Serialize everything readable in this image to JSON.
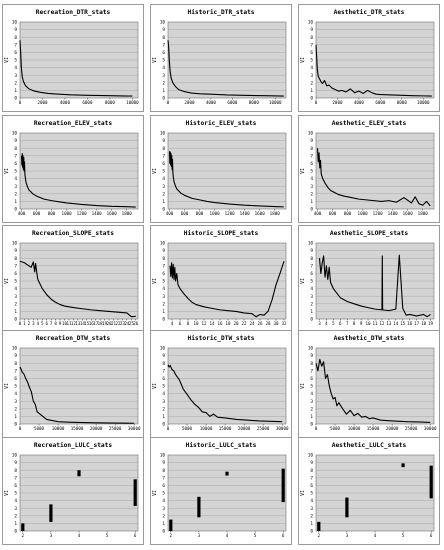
{
  "page": {
    "background": "#ffffff",
    "plot_background": "#d4d4d4",
    "line_color": "#000000",
    "frame_color": "#9a9a9a"
  },
  "chart_data": [
    {
      "type": "line",
      "title": "Recreation_DTR_stats",
      "ylabel": "VI",
      "xlim": [
        0,
        10500
      ],
      "ylim": [
        0,
        10
      ],
      "xticks": [
        0,
        2000,
        4000,
        6000,
        8000,
        10000
      ],
      "yticks": [
        0,
        1,
        2,
        3,
        4,
        5,
        6,
        7,
        8,
        9,
        10
      ],
      "series": [
        {
          "x": [
            0,
            60,
            120,
            200,
            300,
            500,
            800,
            1200,
            1800,
            2500,
            3500,
            4500,
            6000,
            8000,
            10000
          ],
          "y": [
            7.6,
            6.0,
            4.0,
            2.8,
            2.2,
            1.6,
            1.2,
            0.95,
            0.75,
            0.6,
            0.5,
            0.42,
            0.35,
            0.3,
            0.25
          ]
        }
      ]
    },
    {
      "type": "line",
      "title": "Historic_DTR_stats",
      "ylabel": "VI",
      "xlim": [
        0,
        11000
      ],
      "ylim": [
        0,
        10
      ],
      "xticks": [
        0,
        2000,
        4000,
        6000,
        8000,
        10000
      ],
      "yticks": [
        0,
        1,
        2,
        3,
        4,
        5,
        6,
        7,
        8,
        9,
        10
      ],
      "series": [
        {
          "x": [
            0,
            60,
            120,
            200,
            300,
            450,
            700,
            1000,
            1500,
            2200,
            3000,
            4000,
            5500,
            7000,
            9000,
            10800
          ],
          "y": [
            7.6,
            6.8,
            5.0,
            3.5,
            2.6,
            2.0,
            1.5,
            1.1,
            0.85,
            0.65,
            0.55,
            0.5,
            0.4,
            0.35,
            0.3,
            0.25
          ]
        }
      ]
    },
    {
      "type": "line",
      "title": "Aesthetic_DTR_stats",
      "ylabel": "VI",
      "xlim": [
        0,
        11000
      ],
      "ylim": [
        0,
        10
      ],
      "xticks": [
        0,
        2000,
        4000,
        6000,
        8000,
        10000
      ],
      "yticks": [
        0,
        1,
        2,
        3,
        4,
        5,
        6,
        7,
        8,
        9,
        10
      ],
      "series": [
        {
          "x": [
            0,
            60,
            120,
            200,
            300,
            450,
            600,
            800,
            1000,
            1200,
            1500,
            1800,
            2100,
            2400,
            2800,
            3200,
            3600,
            4000,
            4400,
            4800,
            5200,
            5600,
            6000,
            7000,
            8000,
            9000,
            10000,
            10800
          ],
          "y": [
            7.0,
            5.5,
            3.8,
            2.9,
            2.6,
            2.2,
            1.9,
            2.3,
            1.6,
            1.7,
            1.3,
            1.1,
            0.9,
            1.0,
            0.8,
            1.2,
            0.7,
            0.9,
            0.6,
            1.0,
            0.7,
            0.5,
            0.45,
            0.4,
            0.35,
            0.3,
            0.28,
            0.25
          ]
        }
      ]
    },
    {
      "type": "line",
      "title": "Recreation_ELEV_stats",
      "ylabel": "VI",
      "xlim": [
        380,
        1950
      ],
      "ylim": [
        0,
        10
      ],
      "xticks": [
        400,
        600,
        800,
        1000,
        1200,
        1400,
        1600,
        1800
      ],
      "yticks": [
        0,
        1,
        2,
        3,
        4,
        5,
        6,
        7,
        8,
        9,
        10
      ],
      "series": [
        {
          "x": [
            400,
            405,
            410,
            415,
            420,
            425,
            430,
            435,
            440,
            445,
            450,
            460,
            480,
            500,
            550,
            600,
            700,
            800,
            900,
            1000,
            1200,
            1400,
            1600,
            1800,
            1920
          ],
          "y": [
            7.0,
            5.8,
            7.3,
            5.5,
            7.0,
            5.2,
            6.8,
            5.0,
            6.2,
            4.6,
            4.2,
            3.5,
            2.9,
            2.5,
            2.0,
            1.7,
            1.3,
            1.1,
            0.95,
            0.8,
            0.6,
            0.45,
            0.35,
            0.3,
            0.25
          ]
        }
      ]
    },
    {
      "type": "line",
      "title": "Historic_ELEV_stats",
      "ylabel": "VI",
      "xlim": [
        380,
        1950
      ],
      "ylim": [
        0,
        10
      ],
      "xticks": [
        400,
        600,
        800,
        1000,
        1200,
        1400,
        1600,
        1800
      ],
      "yticks": [
        0,
        1,
        2,
        3,
        4,
        5,
        6,
        7,
        8,
        9,
        10
      ],
      "series": [
        {
          "x": [
            400,
            405,
            410,
            415,
            420,
            425,
            430,
            435,
            440,
            445,
            450,
            460,
            480,
            500,
            550,
            600,
            700,
            800,
            900,
            1000,
            1200,
            1400,
            1600,
            1800,
            1920
          ],
          "y": [
            7.6,
            6.0,
            7.5,
            5.8,
            7.3,
            5.6,
            7.0,
            5.2,
            6.5,
            4.8,
            4.3,
            3.6,
            3.0,
            2.6,
            2.1,
            1.8,
            1.4,
            1.2,
            1.0,
            0.85,
            0.65,
            0.5,
            0.4,
            0.32,
            0.28
          ]
        }
      ]
    },
    {
      "type": "line",
      "title": "Aesthetic_ELEV_stats",
      "ylabel": "VI",
      "xlim": [
        380,
        1950
      ],
      "ylim": [
        0,
        10
      ],
      "xticks": [
        400,
        600,
        800,
        1000,
        1200,
        1400,
        1600,
        1800
      ],
      "yticks": [
        0,
        1,
        2,
        3,
        4,
        5,
        6,
        7,
        8,
        9,
        10
      ],
      "series": [
        {
          "x": [
            400,
            410,
            420,
            430,
            440,
            450,
            470,
            500,
            540,
            580,
            620,
            680,
            750,
            850,
            950,
            1050,
            1150,
            1250,
            1350,
            1450,
            1550,
            1650,
            1700,
            1750,
            1800,
            1850,
            1900
          ],
          "y": [
            8.0,
            6.2,
            7.4,
            5.4,
            6.4,
            4.6,
            4.0,
            3.4,
            2.8,
            2.4,
            2.2,
            1.9,
            1.7,
            1.5,
            1.3,
            1.2,
            1.1,
            1.0,
            1.1,
            0.9,
            1.5,
            0.8,
            1.6,
            0.7,
            0.5,
            1.0,
            0.4
          ]
        }
      ]
    },
    {
      "type": "line",
      "title": "Recreation_SLOPE_stats",
      "ylabel": "VI",
      "xlim": [
        0,
        26.5
      ],
      "ylim": [
        0,
        10
      ],
      "xticks": [
        0,
        1,
        2,
        3,
        4,
        5,
        6,
        7,
        8,
        9,
        10,
        11,
        12,
        13,
        14,
        15,
        16,
        17,
        18,
        19,
        20,
        21,
        22,
        23,
        24,
        25,
        26
      ],
      "yticks": [
        0,
        1,
        2,
        3,
        4,
        5,
        6,
        7,
        8,
        9,
        10
      ],
      "series": [
        {
          "x": [
            0,
            0.5,
            1,
            1.5,
            2,
            2.5,
            3,
            3.3,
            3.5,
            3.8,
            4,
            4.5,
            5,
            6,
            7,
            8,
            9,
            10,
            12,
            14,
            16,
            18,
            20,
            22,
            24,
            25,
            26
          ],
          "y": [
            7.6,
            7.5,
            7.4,
            7.2,
            7.0,
            6.8,
            7.5,
            6.2,
            7.3,
            6.0,
            5.2,
            4.6,
            4.0,
            3.2,
            2.6,
            2.2,
            1.9,
            1.7,
            1.5,
            1.35,
            1.2,
            1.1,
            1.0,
            0.9,
            0.8,
            0.3,
            0.35
          ]
        }
      ]
    },
    {
      "type": "line",
      "title": "Historic_SLOPE_stats",
      "ylabel": "VI",
      "xlim": [
        3,
        32.5
      ],
      "ylim": [
        0,
        10
      ],
      "xticks": [
        4,
        6,
        8,
        10,
        12,
        14,
        16,
        18,
        20,
        22,
        24,
        26,
        28,
        30,
        32
      ],
      "yticks": [
        0,
        1,
        2,
        3,
        4,
        5,
        6,
        7,
        8,
        9,
        10
      ],
      "series": [
        {
          "x": [
            3.5,
            3.7,
            3.9,
            4.1,
            4.3,
            4.5,
            4.7,
            4.9,
            5.2,
            5.5,
            6,
            7,
            8,
            9,
            10,
            12,
            14,
            16,
            18,
            20,
            22,
            24,
            25,
            26,
            27,
            28,
            29,
            30,
            31,
            32
          ],
          "y": [
            7.0,
            5.6,
            7.4,
            5.4,
            7.2,
            5.2,
            6.8,
            5.0,
            6.0,
            4.5,
            4.0,
            3.3,
            2.7,
            2.2,
            1.9,
            1.6,
            1.4,
            1.2,
            1.1,
            1.0,
            0.8,
            0.7,
            0.3,
            0.6,
            0.5,
            1.0,
            2.5,
            4.5,
            6.0,
            7.6
          ]
        }
      ]
    },
    {
      "type": "line",
      "title": "Aesthetic_SLOPE_stats",
      "ylabel": "VI",
      "xlim": [
        2.5,
        19.5
      ],
      "ylim": [
        0,
        10
      ],
      "xticks": [
        3,
        4,
        5,
        6,
        7,
        8,
        9,
        10,
        11,
        12,
        13,
        14,
        15,
        16,
        17,
        18,
        19
      ],
      "yticks": [
        0,
        1,
        2,
        3,
        4,
        5,
        6,
        7,
        8,
        9,
        10
      ],
      "series": [
        {
          "x": [
            3,
            3.2,
            3.4,
            3.6,
            3.8,
            4,
            4.2,
            4.4,
            4.6,
            5,
            5.5,
            6,
            7,
            8,
            9,
            10,
            11,
            12,
            12.05,
            12.1,
            13,
            14,
            14.5,
            15,
            15.5,
            16,
            17,
            18,
            18.5,
            19
          ],
          "y": [
            8.0,
            6.0,
            7.4,
            8.3,
            5.5,
            7.0,
            5.2,
            6.8,
            4.8,
            4.0,
            3.4,
            2.8,
            2.3,
            2.0,
            1.7,
            1.5,
            1.3,
            1.2,
            8.3,
            1.2,
            1.1,
            1.3,
            8.4,
            1.4,
            0.5,
            0.6,
            0.4,
            0.6,
            0.3,
            0.6
          ]
        }
      ]
    },
    {
      "type": "line",
      "title": "Recreation_DTW_stats",
      "ylabel": "VI",
      "xlim": [
        0,
        31000
      ],
      "ylim": [
        0,
        10
      ],
      "xticks": [
        0,
        5000,
        10000,
        15000,
        20000,
        25000,
        30000
      ],
      "yticks": [
        0,
        1,
        2,
        3,
        4,
        5,
        6,
        7,
        8,
        9,
        10
      ],
      "series": [
        {
          "x": [
            0,
            300,
            600,
            1000,
            1500,
            2000,
            2500,
            3000,
            3500,
            4000,
            4500,
            5000,
            6000,
            7000,
            8000,
            9000,
            10000,
            12000,
            15000,
            20000,
            25000,
            30000
          ],
          "y": [
            7.5,
            7.2,
            6.8,
            6.6,
            6.0,
            5.5,
            4.8,
            4.2,
            3.0,
            2.6,
            1.6,
            1.4,
            1.0,
            0.6,
            0.5,
            0.4,
            0.3,
            0.25,
            0.2,
            0.15,
            0.12,
            0.1
          ]
        }
      ]
    },
    {
      "type": "line",
      "title": "Historic_DTW_stats",
      "ylabel": "VI",
      "xlim": [
        0,
        31000
      ],
      "ylim": [
        0,
        10
      ],
      "xticks": [
        0,
        5000,
        10000,
        15000,
        20000,
        25000,
        30000
      ],
      "yticks": [
        0,
        1,
        2,
        3,
        4,
        5,
        6,
        7,
        8,
        9,
        10
      ],
      "series": [
        {
          "x": [
            0,
            300,
            600,
            1000,
            1500,
            2000,
            3000,
            4000,
            5000,
            6000,
            7000,
            8000,
            9000,
            10000,
            11000,
            12000,
            13000,
            15000,
            18000,
            21000,
            24000,
            27000,
            30000
          ],
          "y": [
            7.8,
            7.5,
            7.7,
            7.2,
            7.0,
            6.5,
            5.8,
            4.6,
            3.9,
            3.2,
            2.6,
            2.2,
            1.6,
            1.5,
            1.0,
            1.3,
            0.9,
            0.8,
            0.6,
            0.5,
            0.4,
            0.35,
            0.3
          ]
        }
      ]
    },
    {
      "type": "line",
      "title": "Aesthetic_DTW_stats",
      "ylabel": "VI",
      "xlim": [
        0,
        31000
      ],
      "ylim": [
        0,
        10
      ],
      "xticks": [
        0,
        5000,
        10000,
        15000,
        20000,
        25000,
        30000
      ],
      "yticks": [
        0,
        1,
        2,
        3,
        4,
        5,
        6,
        7,
        8,
        9,
        10
      ],
      "series": [
        {
          "x": [
            0,
            500,
            1000,
            1500,
            2000,
            2500,
            3000,
            3500,
            4000,
            4500,
            5000,
            5500,
            6000,
            7000,
            8000,
            9000,
            10000,
            11000,
            12000,
            13000,
            14000,
            15000,
            17000,
            20000,
            24000,
            28000,
            30000
          ],
          "y": [
            8.0,
            7.0,
            8.5,
            7.6,
            8.2,
            6.0,
            6.5,
            5.0,
            4.0,
            3.3,
            3.5,
            2.4,
            2.8,
            2.0,
            1.3,
            1.8,
            1.1,
            1.4,
            0.9,
            1.0,
            0.7,
            0.8,
            0.5,
            0.4,
            0.3,
            0.25,
            0.2
          ]
        }
      ]
    },
    {
      "type": "bar",
      "title": "Recreation_LULC_stats",
      "ylabel": "VI",
      "xlim": [
        1.9,
        6.1
      ],
      "ylim": [
        0,
        10
      ],
      "xticks": [
        2,
        3,
        4,
        5,
        6
      ],
      "yticks": [
        0,
        1,
        2,
        3,
        4,
        5,
        6,
        7,
        8,
        9,
        10
      ],
      "ranges": [
        {
          "x": 2,
          "y0": 0,
          "y1": 1.0
        },
        {
          "x": 3,
          "y0": 1.2,
          "y1": 3.5
        },
        {
          "x": 4,
          "y0": 7.2,
          "y1": 8.0
        },
        {
          "x": 6,
          "y0": 3.3,
          "y1": 6.8
        }
      ]
    },
    {
      "type": "bar",
      "title": "Historic_LULC_stats",
      "ylabel": "VI",
      "xlim": [
        1.9,
        6.1
      ],
      "ylim": [
        0,
        10
      ],
      "xticks": [
        2,
        3,
        4,
        5,
        6
      ],
      "yticks": [
        0,
        1,
        2,
        3,
        4,
        5,
        6,
        7,
        8,
        9,
        10
      ],
      "ranges": [
        {
          "x": 2,
          "y0": 0,
          "y1": 1.5
        },
        {
          "x": 3,
          "y0": 1.8,
          "y1": 4.5
        },
        {
          "x": 4,
          "y0": 7.3,
          "y1": 7.8
        },
        {
          "x": 6,
          "y0": 3.8,
          "y1": 8.2
        }
      ]
    },
    {
      "type": "bar",
      "title": "Aesthetic_LULC_stats",
      "ylabel": "VI",
      "xlim": [
        1.9,
        6.1
      ],
      "ylim": [
        0,
        10
      ],
      "xticks": [
        2,
        3,
        4,
        5,
        6
      ],
      "yticks": [
        0,
        1,
        2,
        3,
        4,
        5,
        6,
        7,
        8,
        9,
        10
      ],
      "ranges": [
        {
          "x": 2,
          "y0": 0,
          "y1": 1.2
        },
        {
          "x": 3,
          "y0": 1.8,
          "y1": 4.4
        },
        {
          "x": 5,
          "y0": 8.4,
          "y1": 8.9
        },
        {
          "x": 6,
          "y0": 4.3,
          "y1": 8.6
        }
      ]
    }
  ]
}
